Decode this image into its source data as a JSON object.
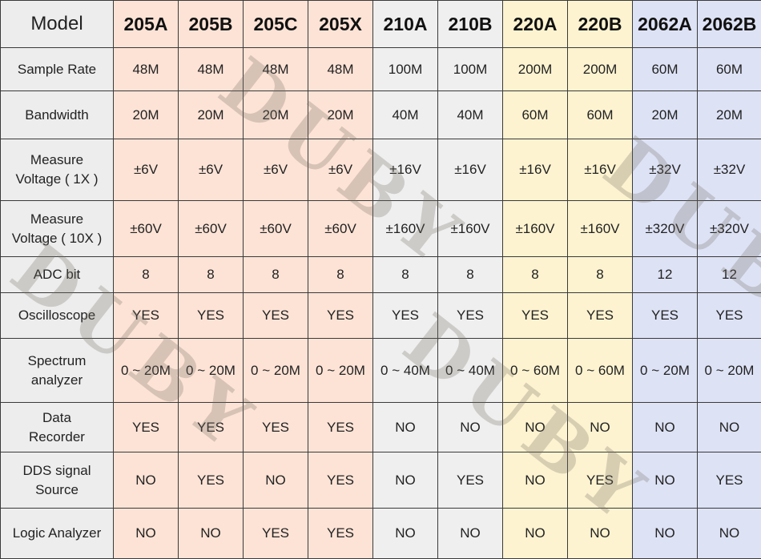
{
  "table": {
    "header_label": "Model",
    "models": [
      "205A",
      "205B",
      "205C",
      "205X",
      "210A",
      "210B",
      "220A",
      "220B",
      "2062A",
      "2062B"
    ],
    "rows": [
      {
        "label": [
          "Sample Rate"
        ],
        "values": [
          "48M",
          "48M",
          "48M",
          "48M",
          "100M",
          "100M",
          "200M",
          "200M",
          "60M",
          "60M"
        ]
      },
      {
        "label": [
          "Bandwidth"
        ],
        "values": [
          "20M",
          "20M",
          "20M",
          "20M",
          "40M",
          "40M",
          "60M",
          "60M",
          "20M",
          "20M"
        ]
      },
      {
        "label": [
          "Measure",
          "Voltage ( 1X )"
        ],
        "values": [
          "±6V",
          "±6V",
          "±6V",
          "±6V",
          "±16V",
          "±16V",
          "±16V",
          "±16V",
          "±32V",
          "±32V"
        ]
      },
      {
        "label": [
          "Measure",
          "Voltage ( 10X )"
        ],
        "values": [
          "±60V",
          "±60V",
          "±60V",
          "±60V",
          "±160V",
          "±160V",
          "±160V",
          "±160V",
          "±320V",
          "±320V"
        ]
      },
      {
        "label": [
          "ADC bit"
        ],
        "values": [
          "8",
          "8",
          "8",
          "8",
          "8",
          "8",
          "8",
          "8",
          "12",
          "12"
        ]
      },
      {
        "label": [
          "Oscilloscope"
        ],
        "values": [
          "YES",
          "YES",
          "YES",
          "YES",
          "YES",
          "YES",
          "YES",
          "YES",
          "YES",
          "YES"
        ]
      },
      {
        "label": [
          "Spectrum",
          "analyzer"
        ],
        "values": [
          "0 ~ 20M",
          "0 ~ 20M",
          "0 ~ 20M",
          "0 ~ 20M",
          "0 ~ 40M",
          "0 ~ 40M",
          "0 ~ 60M",
          "0 ~ 60M",
          "0 ~ 20M",
          "0 ~ 20M"
        ]
      },
      {
        "label": [
          "Data",
          "Recorder"
        ],
        "values": [
          "YES",
          "YES",
          "YES",
          "YES",
          "NO",
          "NO",
          "NO",
          "NO",
          "NO",
          "NO"
        ]
      },
      {
        "label": [
          "DDS signal",
          "Source"
        ],
        "values": [
          "NO",
          "YES",
          "NO",
          "YES",
          "NO",
          "YES",
          "NO",
          "YES",
          "NO",
          "YES"
        ]
      },
      {
        "label": [
          "Logic Analyzer"
        ],
        "values": [
          "NO",
          "NO",
          "YES",
          "YES",
          "NO",
          "NO",
          "NO",
          "NO",
          "NO",
          "NO"
        ]
      }
    ]
  },
  "watermark": "DUBY",
  "colors": {
    "group_205": "#fde3d6",
    "group_210": "#efefef",
    "group_220": "#fdf3d0",
    "group_2062": "#dde2f5",
    "label_column": "#ededed"
  }
}
